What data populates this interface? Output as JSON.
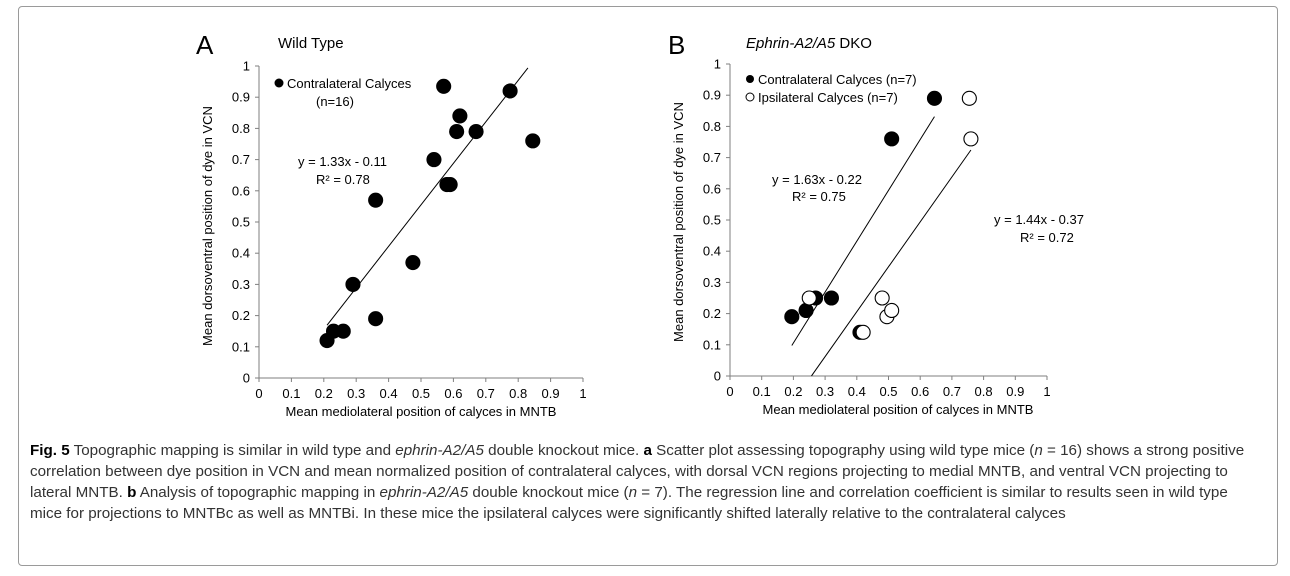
{
  "panels": [
    {
      "letter": "A",
      "title": "Wild Type",
      "legend": [
        "Contralateral Calyces",
        "(n=16)"
      ],
      "equation": "y = 1.33x - 0.11",
      "r2": "R² = 0.78"
    },
    {
      "letter": "B",
      "title": "Ephrin-A2/A5 DKO",
      "legend": [
        "Contralateral Calyces (n=7)",
        "Ipsilateral Calyces (n=7)"
      ],
      "equation_contra": "y = 1.63x - 0.22",
      "r2_contra": "R² = 0.75",
      "equation_ipsi": "y = 1.44x - 0.37",
      "r2_ipsi": "R² = 0.72"
    }
  ],
  "chart_data": [
    {
      "type": "scatter",
      "title": "Wild Type",
      "xlabel": "Mean mediolateral position of calyces in MNTB",
      "ylabel": "Mean dorsoventral position of dye in VCN",
      "xlim": [
        0,
        1
      ],
      "ylim": [
        0,
        1
      ],
      "x_ticks": [
        "0",
        "0.1",
        "0.2",
        "0.3",
        "0.4",
        "0.5",
        "0.6",
        "0.7",
        "0.8",
        "0.9",
        "1"
      ],
      "y_ticks": [
        "0",
        "0.1",
        "0.2",
        "0.3",
        "0.4",
        "0.5",
        "0.6",
        "0.7",
        "0.8",
        "0.9",
        "1"
      ],
      "series": [
        {
          "name": "Contralateral Calyces",
          "marker": "filled",
          "points": [
            [
              0.21,
              0.12
            ],
            [
              0.23,
              0.15
            ],
            [
              0.26,
              0.15
            ],
            [
              0.29,
              0.3
            ],
            [
              0.36,
              0.19
            ],
            [
              0.36,
              0.57
            ],
            [
              0.475,
              0.37
            ],
            [
              0.54,
              0.7
            ],
            [
              0.57,
              0.935
            ],
            [
              0.58,
              0.62
            ],
            [
              0.59,
              0.62
            ],
            [
              0.61,
              0.79
            ],
            [
              0.62,
              0.84
            ],
            [
              0.67,
              0.79
            ],
            [
              0.775,
              0.92
            ],
            [
              0.845,
              0.76
            ]
          ]
        }
      ],
      "fit_lines": [
        {
          "slope": 1.33,
          "intercept": -0.11,
          "x_range": [
            0.21,
            0.83
          ]
        }
      ],
      "legend_position": "top-left",
      "grid": false
    },
    {
      "type": "scatter",
      "title": "Ephrin-A2/A5 DKO",
      "xlabel": "Mean mediolateral position of calyces in MNTB",
      "ylabel": "Mean dorsoventral position of dye in VCN",
      "xlim": [
        0,
        1
      ],
      "ylim": [
        0,
        1
      ],
      "x_ticks": [
        "0",
        "0.1",
        "0.2",
        "0.3",
        "0.4",
        "0.5",
        "0.6",
        "0.7",
        "0.8",
        "0.9",
        "1"
      ],
      "y_ticks": [
        "0",
        "0.1",
        "0.2",
        "0.3",
        "0.4",
        "0.5",
        "0.6",
        "0.7",
        "0.8",
        "0.9",
        "1"
      ],
      "series": [
        {
          "name": "Contralateral Calyces (n=7)",
          "marker": "filled",
          "points": [
            [
              0.195,
              0.19
            ],
            [
              0.24,
              0.21
            ],
            [
              0.27,
              0.25
            ],
            [
              0.32,
              0.25
            ],
            [
              0.41,
              0.14
            ],
            [
              0.51,
              0.76
            ],
            [
              0.645,
              0.89
            ]
          ]
        },
        {
          "name": "Ipsilateral Calyces (n=7)",
          "marker": "open",
          "points": [
            [
              0.25,
              0.25
            ],
            [
              0.42,
              0.14
            ],
            [
              0.48,
              0.25
            ],
            [
              0.495,
              0.19
            ],
            [
              0.51,
              0.21
            ],
            [
              0.755,
              0.89
            ],
            [
              0.76,
              0.76
            ]
          ]
        }
      ],
      "fit_lines": [
        {
          "slope": 1.63,
          "intercept": -0.22,
          "x_range": [
            0.195,
            0.645
          ]
        },
        {
          "slope": 1.44,
          "intercept": -0.37,
          "x_range": [
            0.257,
            0.76
          ]
        }
      ],
      "legend_position": "top-left",
      "grid": false
    }
  ],
  "caption": {
    "lead": "Fig. 5",
    "parts": [
      {
        "t": " Topographic mapping is similar in wild type and ",
        "s": "n"
      },
      {
        "t": "ephrin-A2/A5",
        "s": "i"
      },
      {
        "t": " double knockout mice. ",
        "s": "n"
      },
      {
        "t": "a",
        "s": "b"
      },
      {
        "t": " Scatter plot assessing topography using wild type mice (",
        "s": "n"
      },
      {
        "t": "n",
        "s": "i"
      },
      {
        "t": " = 16) shows a strong positive correlation between dye position in VCN and mean normalized position of contralateral calyces, with dorsal VCN regions projecting to medial MNTB, and ventral VCN projecting to lateral MNTB. ",
        "s": "n"
      },
      {
        "t": "b",
        "s": "b"
      },
      {
        "t": " Analysis of topographic mapping in ",
        "s": "n"
      },
      {
        "t": "ephrin-A2/A5",
        "s": "i"
      },
      {
        "t": " double knockout mice (",
        "s": "n"
      },
      {
        "t": "n",
        "s": "i"
      },
      {
        "t": " = 7). The regression line and correlation coefficient is similar to results seen in wild type mice for projections to MNTBc as well as MNTBi. In these mice the ipsilateral calyces were significantly shifted laterally relative to the contralateral calyces",
        "s": "n"
      }
    ]
  }
}
